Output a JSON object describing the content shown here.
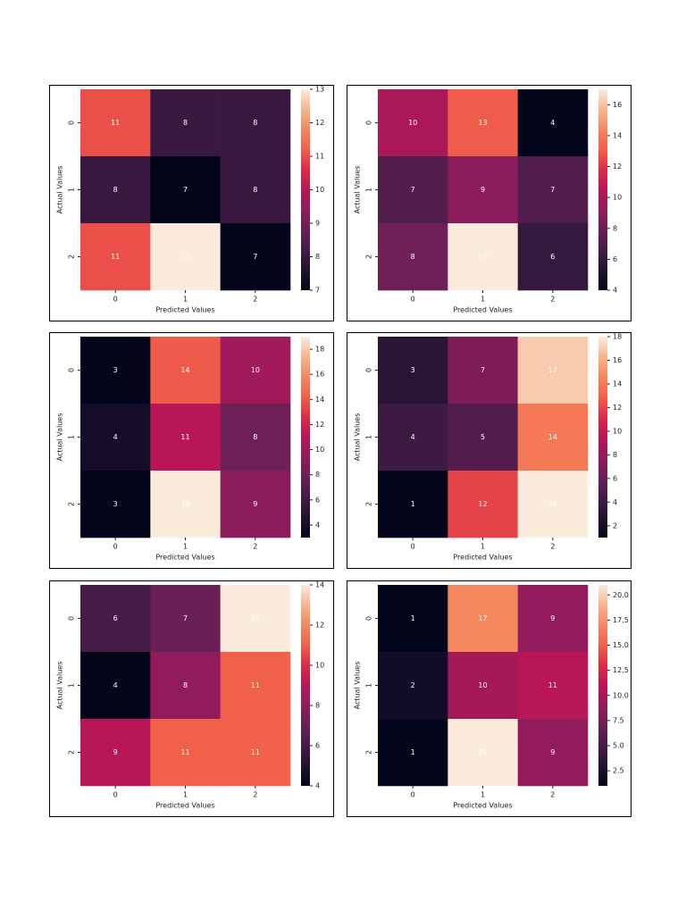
{
  "chart_data": [
    {
      "type": "heatmap",
      "x_label": "Predicted Values",
      "y_label": "Actual Values",
      "x_categories": [
        "0",
        "1",
        "2"
      ],
      "y_categories": [
        "0",
        "1",
        "2"
      ],
      "values": [
        [
          11,
          8,
          8
        ],
        [
          8,
          7,
          8
        ],
        [
          11,
          13,
          7
        ]
      ],
      "clim": [
        7,
        13
      ],
      "cticks": [
        7,
        8,
        9,
        10,
        11,
        12,
        13
      ],
      "colorscale": [
        "#03051a",
        "#221331",
        "#451c47",
        "#6a1f56",
        "#921c5b",
        "#b91657",
        "#dd2c45",
        "#f1604b",
        "#f4875e",
        "#f6b48e",
        "#faebdd"
      ]
    },
    {
      "type": "heatmap",
      "x_label": "Predicted Values",
      "y_label": "Actual Values",
      "x_categories": [
        "0",
        "1",
        "2"
      ],
      "y_categories": [
        "0",
        "1",
        "2"
      ],
      "values": [
        [
          10,
          13,
          4
        ],
        [
          7,
          9,
          7
        ],
        [
          8,
          17,
          6
        ]
      ],
      "clim": [
        4,
        17
      ],
      "cticks": [
        4,
        6,
        8,
        10,
        12,
        14,
        16
      ],
      "colorscale": [
        "#03051a",
        "#221331",
        "#451c47",
        "#6a1f56",
        "#921c5b",
        "#b91657",
        "#dd2c45",
        "#f1604b",
        "#f4875e",
        "#f6b48e",
        "#faebdd"
      ]
    },
    {
      "type": "heatmap",
      "x_label": "Predicted Values",
      "y_label": "Actual Values",
      "x_categories": [
        "0",
        "1",
        "2"
      ],
      "y_categories": [
        "0",
        "1",
        "2"
      ],
      "values": [
        [
          3,
          14,
          10
        ],
        [
          4,
          11,
          8
        ],
        [
          3,
          19,
          9
        ]
      ],
      "clim": [
        3,
        19
      ],
      "cticks": [
        4,
        6,
        8,
        10,
        12,
        14,
        16,
        18
      ],
      "colorscale": [
        "#03051a",
        "#221331",
        "#451c47",
        "#6a1f56",
        "#921c5b",
        "#b91657",
        "#dd2c45",
        "#f1604b",
        "#f4875e",
        "#f6b48e",
        "#faebdd"
      ]
    },
    {
      "type": "heatmap",
      "x_label": "Predicted Values",
      "y_label": "Actual Values",
      "x_categories": [
        "0",
        "1",
        "2"
      ],
      "y_categories": [
        "0",
        "1",
        "2"
      ],
      "values": [
        [
          3,
          7,
          17
        ],
        [
          4,
          5,
          14
        ],
        [
          1,
          12,
          18
        ]
      ],
      "clim": [
        1,
        18
      ],
      "cticks": [
        2,
        4,
        6,
        8,
        10,
        12,
        14,
        16,
        18
      ],
      "colorscale": [
        "#03051a",
        "#221331",
        "#451c47",
        "#6a1f56",
        "#921c5b",
        "#b91657",
        "#dd2c45",
        "#f1604b",
        "#f4875e",
        "#f6b48e",
        "#faebdd"
      ]
    },
    {
      "type": "heatmap",
      "x_label": "Predicted Values",
      "y_label": "Actual Values",
      "x_categories": [
        "0",
        "1",
        "2"
      ],
      "y_categories": [
        "0",
        "1",
        "2"
      ],
      "values": [
        [
          6,
          7,
          14
        ],
        [
          4,
          8,
          11
        ],
        [
          9,
          11,
          11
        ]
      ],
      "clim": [
        4,
        14
      ],
      "cticks": [
        4,
        6,
        8,
        10,
        12,
        14
      ],
      "colorscale": [
        "#03051a",
        "#221331",
        "#451c47",
        "#6a1f56",
        "#921c5b",
        "#b91657",
        "#dd2c45",
        "#f1604b",
        "#f4875e",
        "#f6b48e",
        "#faebdd"
      ]
    },
    {
      "type": "heatmap",
      "x_label": "Predicted Values",
      "y_label": "Actual Values",
      "x_categories": [
        "0",
        "1",
        "2"
      ],
      "y_categories": [
        "0",
        "1",
        "2"
      ],
      "values": [
        [
          1,
          17,
          9
        ],
        [
          2,
          10,
          11
        ],
        [
          1,
          21,
          9
        ]
      ],
      "clim": [
        1,
        21
      ],
      "cticks": [
        2.5,
        {
          "value": 5,
          "label": "5.0"
        },
        7.5,
        {
          "value": 10,
          "label": "10.0"
        },
        12.5,
        {
          "value": 15,
          "label": "15.0"
        },
        17.5,
        {
          "value": 20,
          "label": "20.0"
        }
      ],
      "colorscale": [
        "#03051a",
        "#221331",
        "#451c47",
        "#6a1f56",
        "#921c5b",
        "#b91657",
        "#dd2c45",
        "#f1604b",
        "#f4875e",
        "#f6b48e",
        "#faebdd"
      ]
    }
  ]
}
